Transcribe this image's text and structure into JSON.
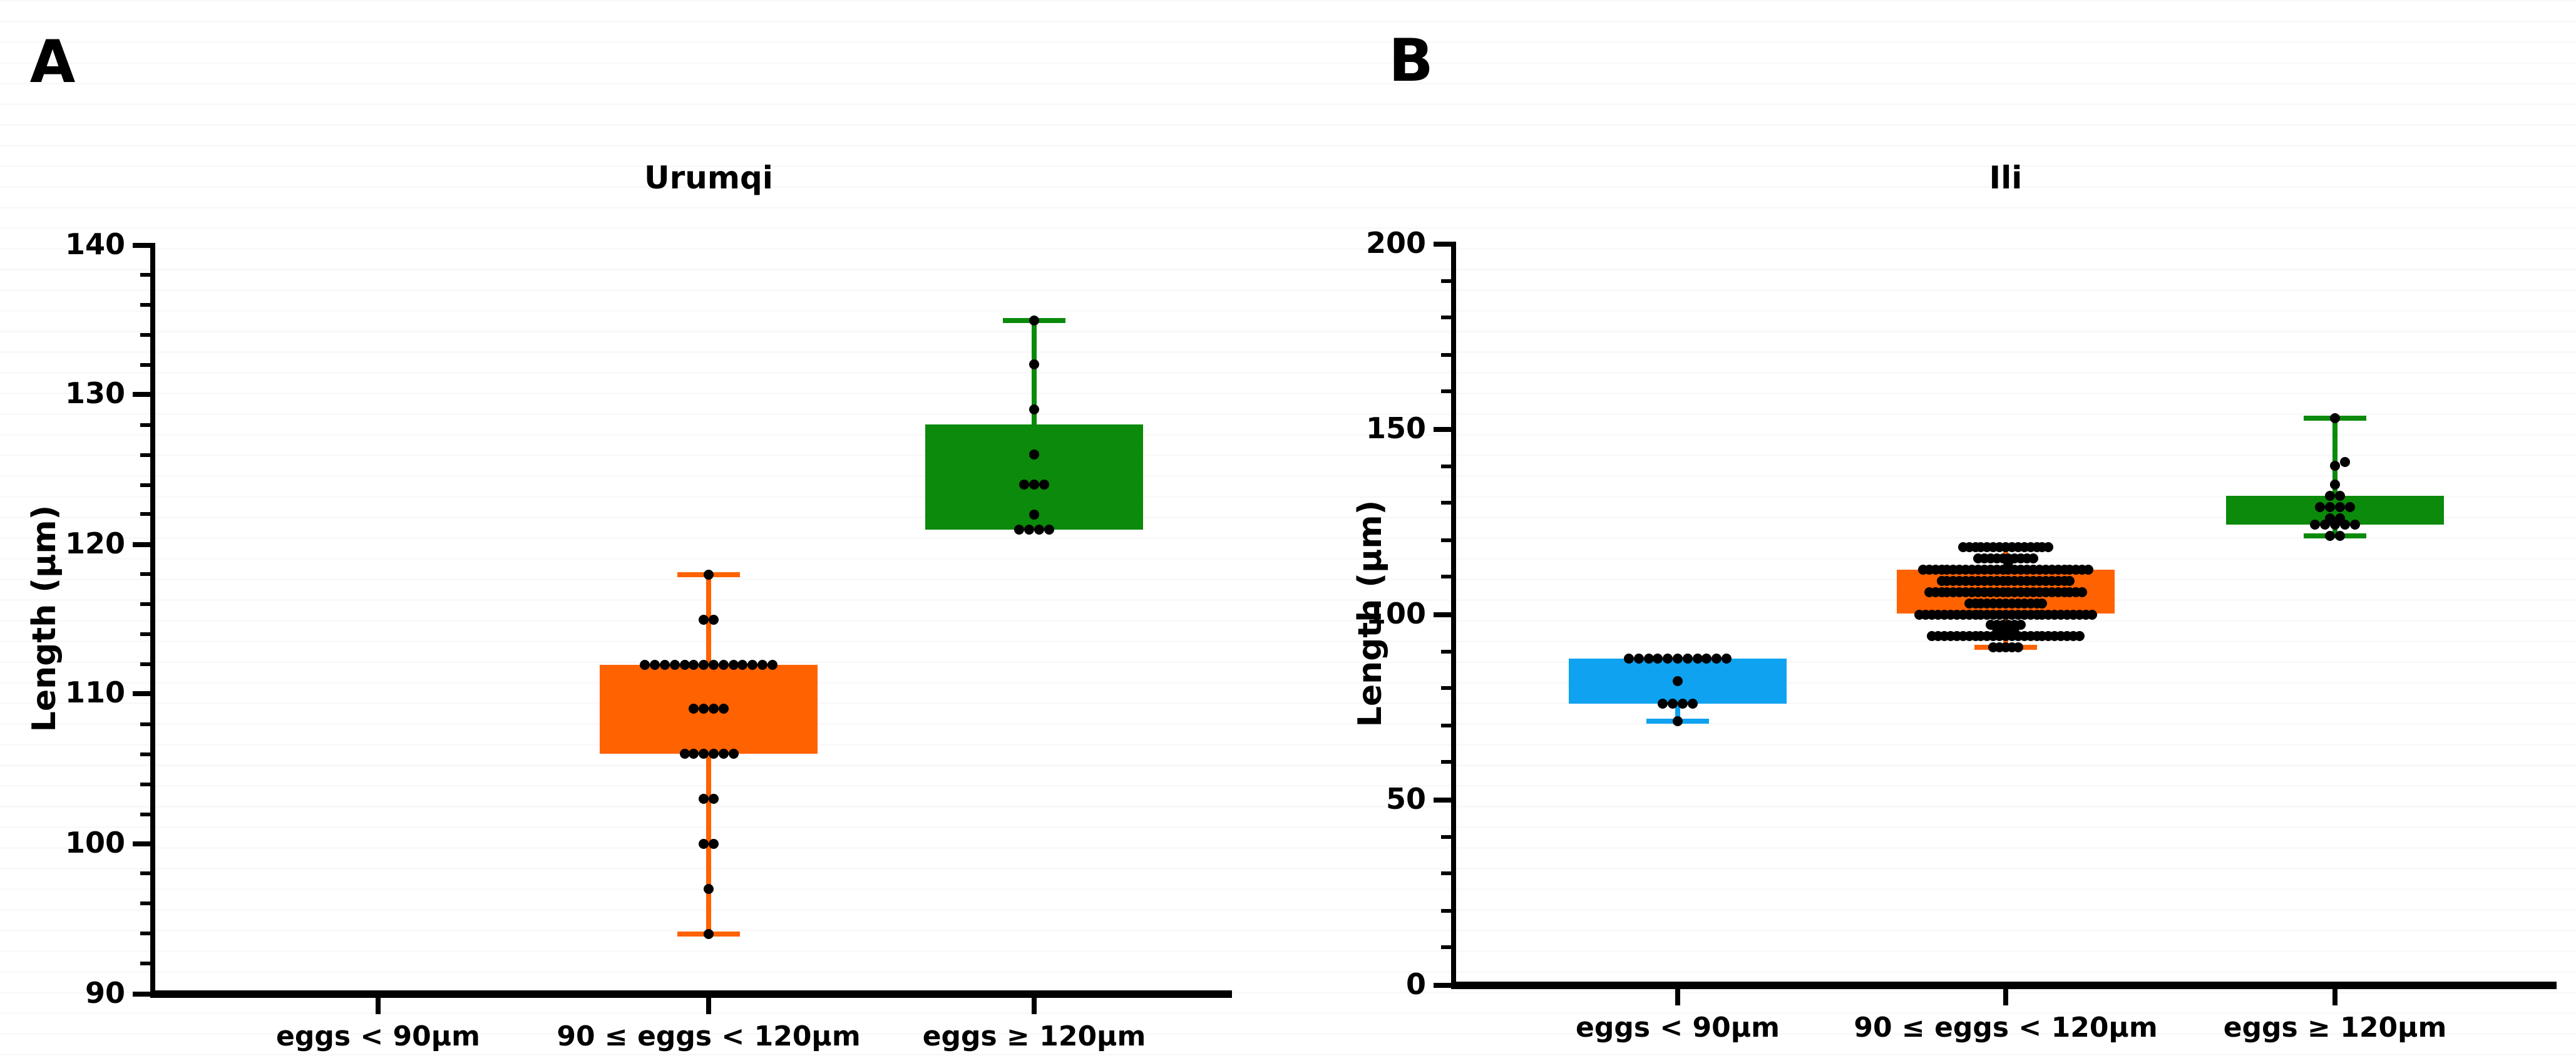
{
  "colors": {
    "orange": "#FF6200",
    "blue": "#0FA2F0",
    "green": "#0B8A0B",
    "dot": "#000000",
    "axis": "#000000"
  },
  "chart_data": [
    {
      "type": "box",
      "panel_letter": "A",
      "title": "Urumqi",
      "ylabel": "Length (μm)",
      "ylim": [
        90,
        140
      ],
      "yticks": [
        140,
        130,
        120,
        110,
        100,
        90
      ],
      "yminor_step": 2,
      "grid": false,
      "legend_position": "none",
      "categories": [
        "eggs < 90μm",
        "90 ≤ eggs < 120μm",
        "eggs ≥ 120μm"
      ],
      "groups": [
        {
          "category_index": 1,
          "color_key": "orange",
          "box": {
            "q1": 106,
            "q3": 112
          },
          "whisker_low": 94,
          "whisker_high": 118,
          "dot_spacing": 7.8,
          "points": [
            {
              "value": 118,
              "count": 1
            },
            {
              "value": 115,
              "count": 2
            },
            {
              "value": 112,
              "count": 14
            },
            {
              "value": 109,
              "count": 4
            },
            {
              "value": 106,
              "count": 6
            },
            {
              "value": 103,
              "count": 2
            },
            {
              "value": 100,
              "count": 2
            },
            {
              "value": 97,
              "count": 1
            },
            {
              "value": 94,
              "count": 1
            }
          ]
        },
        {
          "category_index": 2,
          "color_key": "green",
          "box": {
            "q1": 121,
            "q3": 128
          },
          "whisker_low": null,
          "whisker_high": 135,
          "dot_spacing": 7.8,
          "points": [
            {
              "value": 135,
              "count": 1
            },
            {
              "value": 132,
              "count": 1
            },
            {
              "value": 129,
              "count": 1
            },
            {
              "value": 126,
              "count": 1
            },
            {
              "value": 124,
              "count": 3
            },
            {
              "value": 122,
              "count": 1
            },
            {
              "value": 121,
              "count": 4
            }
          ]
        }
      ]
    },
    {
      "type": "box",
      "panel_letter": "B",
      "title": "Ili",
      "ylabel": "Length (μm)",
      "ylim": [
        0,
        200
      ],
      "yticks": [
        200,
        150,
        100,
        50,
        0
      ],
      "yminor_step": 10,
      "grid": false,
      "legend_position": "none",
      "categories": [
        "eggs < 90μm",
        "90 ≤ eggs < 120μm",
        "eggs ≥ 120μm"
      ],
      "groups": [
        {
          "category_index": 0,
          "color_key": "blue",
          "box": {
            "q1": 76,
            "q3": 88
          },
          "whisker_low": 71,
          "whisker_high": null,
          "dot_spacing": 7.8,
          "points": [
            {
              "value": 88,
              "count": 11
            },
            {
              "value": 82,
              "count": 1
            },
            {
              "value": 76,
              "count": 4
            },
            {
              "value": 71,
              "count": 1
            }
          ]
        },
        {
          "category_index": 1,
          "color_key": "orange",
          "box": {
            "q1": 100,
            "q3": 112
          },
          "whisker_low": 91,
          "whisker_high": 118,
          "dot_spacing": 4.9,
          "points": [
            {
              "value": 118,
              "count": 15
            },
            {
              "value": 115,
              "count": 10
            },
            {
              "value": 114,
              "count": 1,
              "dx": 2
            },
            {
              "value": 112,
              "count": 28
            },
            {
              "value": 109,
              "count": 22
            },
            {
              "value": 106,
              "count": 26
            },
            {
              "value": 103,
              "count": 13
            },
            {
              "value": 100,
              "count": 29
            },
            {
              "value": 97,
              "count": 6
            },
            {
              "value": 96,
              "count": 4
            },
            {
              "value": 94,
              "count": 25
            },
            {
              "value": 91,
              "count": 5
            }
          ]
        },
        {
          "category_index": 2,
          "color_key": "green",
          "box": {
            "q1": 124,
            "q3": 132
          },
          "whisker_low": 121,
          "whisker_high": 153,
          "dot_spacing": 7.8,
          "points": [
            {
              "value": 153,
              "count": 1
            },
            {
              "value": 141,
              "count": 1,
              "dx": 8
            },
            {
              "value": 140,
              "count": 1
            },
            {
              "value": 135,
              "count": 1
            },
            {
              "value": 132,
              "count": 2
            },
            {
              "value": 129,
              "count": 4
            },
            {
              "value": 126,
              "count": 2
            },
            {
              "value": 124,
              "count": 5
            },
            {
              "value": 121,
              "count": 2
            }
          ]
        }
      ]
    }
  ]
}
